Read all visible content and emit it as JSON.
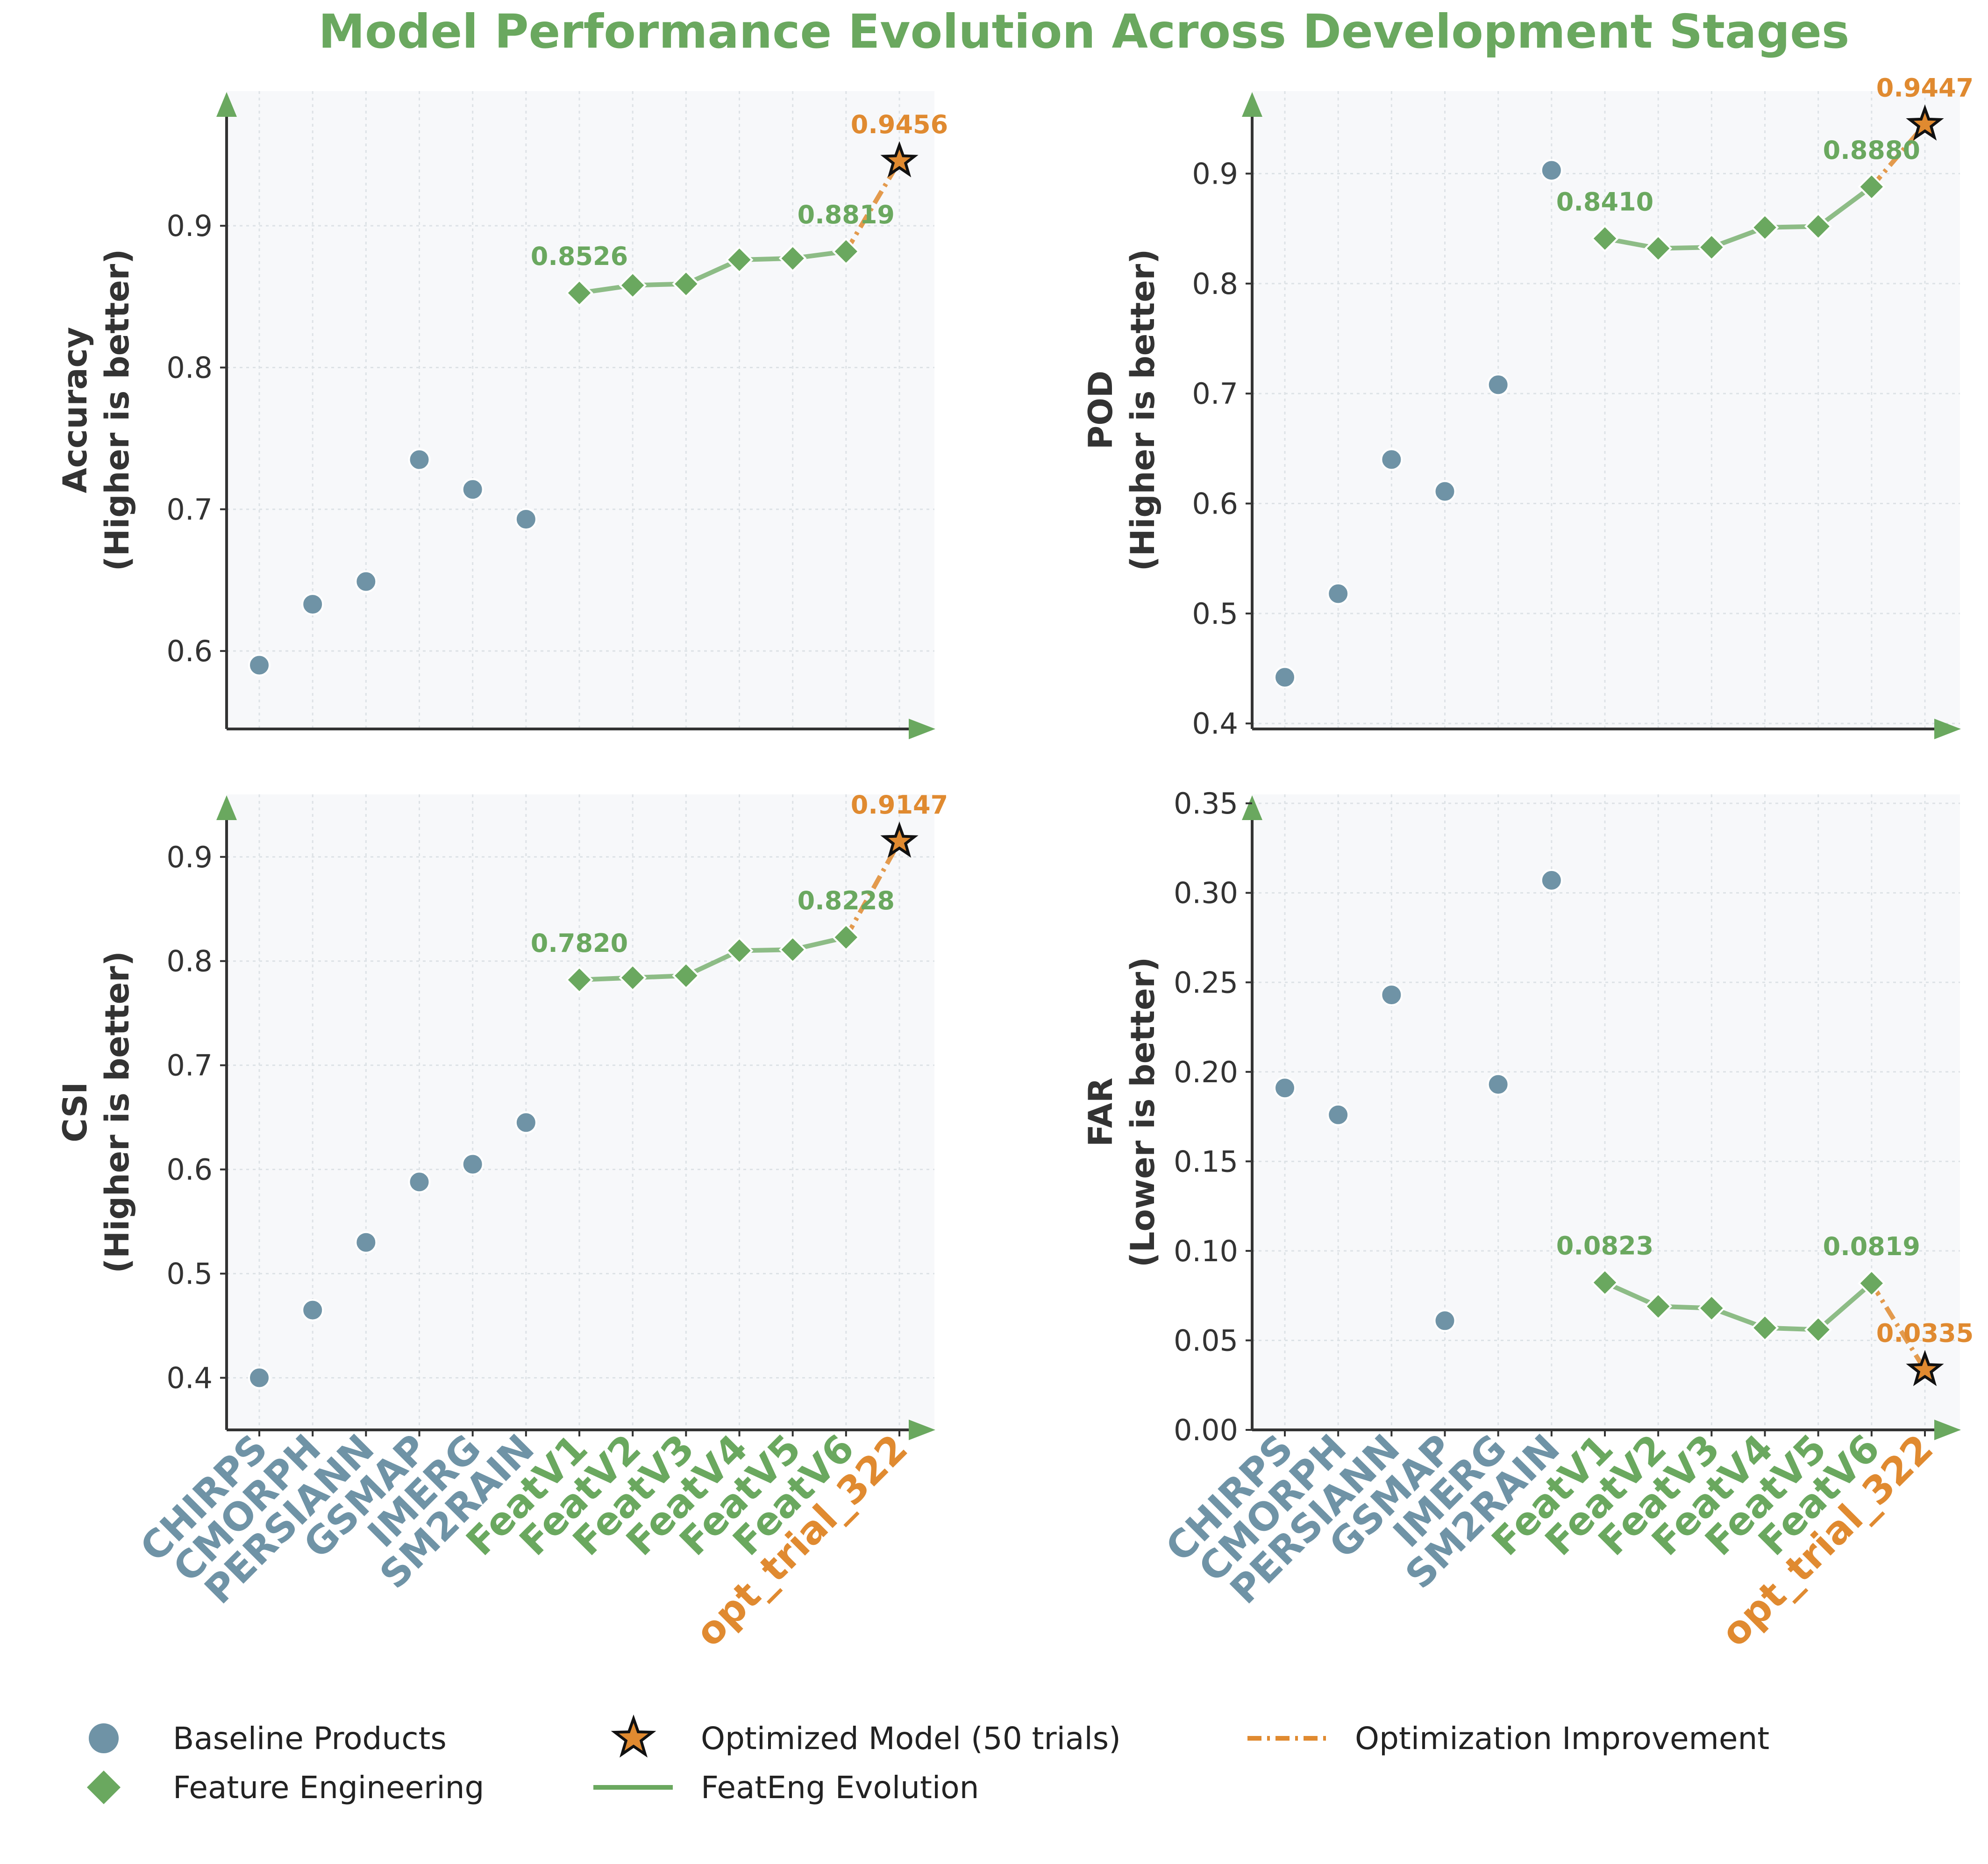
{
  "title": "Model Performance Evolution Across Development Stages",
  "colors": {
    "title": "#6aa85f",
    "baseline": "#6f93a6",
    "feature": "#6aa85f",
    "optimized": "#e08a30",
    "axes": "#333333",
    "panel_bg": "#f7f8fa",
    "grid": "#dde2e6"
  },
  "legend": {
    "baseline": "Baseline Products",
    "feature": "Feature Engineering",
    "optimized": "Optimized Model (50 trials)",
    "evolution": "FeatEng Evolution",
    "improvement": "Optimization Improvement"
  },
  "chart_data": {
    "type": "scatter",
    "categories": [
      "CHIRPS",
      "CMORPH",
      "PERSIANN",
      "GSMAP",
      "IMERG",
      "SM2RAIN",
      "FeatV1",
      "FeatV2",
      "FeatV3",
      "FeatV4",
      "FeatV5",
      "FeatV6",
      "opt_trial_322"
    ],
    "groups": [
      "baseline",
      "baseline",
      "baseline",
      "baseline",
      "baseline",
      "baseline",
      "feature",
      "feature",
      "feature",
      "feature",
      "feature",
      "feature",
      "optimized"
    ],
    "panels": [
      {
        "ylabel_line1": "Accuracy",
        "ylabel_line2": "(Higher is better)",
        "ylim": [
          0.545,
          0.995
        ],
        "yticks": [
          0.6,
          0.7,
          0.8,
          0.9
        ],
        "ytick_labels": [
          "0.6",
          "0.7",
          "0.8",
          "0.9"
        ],
        "values": [
          0.59,
          0.633,
          0.649,
          0.735,
          0.714,
          0.693,
          0.8526,
          0.858,
          0.859,
          0.876,
          0.877,
          0.8819,
          0.9456
        ],
        "annotations": [
          {
            "index": 6,
            "text": "0.8526",
            "group": "feature"
          },
          {
            "index": 11,
            "text": "0.8819",
            "group": "feature"
          },
          {
            "index": 12,
            "text": "0.9456",
            "group": "optimized"
          }
        ]
      },
      {
        "ylabel_line1": "POD",
        "ylabel_line2": "(Higher is better)",
        "ylim": [
          0.395,
          0.975
        ],
        "yticks": [
          0.4,
          0.5,
          0.6,
          0.7,
          0.8,
          0.9
        ],
        "ytick_labels": [
          "0.4",
          "0.5",
          "0.6",
          "0.7",
          "0.8",
          "0.9"
        ],
        "values": [
          0.442,
          0.518,
          0.64,
          0.611,
          0.708,
          0.903,
          0.841,
          0.832,
          0.833,
          0.851,
          0.852,
          0.888,
          0.9447
        ],
        "annotations": [
          {
            "index": 6,
            "text": "0.8410",
            "group": "feature"
          },
          {
            "index": 11,
            "text": "0.8880",
            "group": "feature"
          },
          {
            "index": 12,
            "text": "0.9447",
            "group": "optimized"
          }
        ]
      },
      {
        "ylabel_line1": "CSI",
        "ylabel_line2": "(Higher is better)",
        "ylim": [
          0.35,
          0.96
        ],
        "yticks": [
          0.4,
          0.5,
          0.6,
          0.7,
          0.8,
          0.9
        ],
        "ytick_labels": [
          "0.4",
          "0.5",
          "0.6",
          "0.7",
          "0.8",
          "0.9"
        ],
        "values": [
          0.4,
          0.465,
          0.53,
          0.588,
          0.605,
          0.645,
          0.782,
          0.784,
          0.786,
          0.81,
          0.811,
          0.8228,
          0.9147
        ],
        "annotations": [
          {
            "index": 6,
            "text": "0.7820",
            "group": "feature"
          },
          {
            "index": 11,
            "text": "0.8228",
            "group": "feature"
          },
          {
            "index": 12,
            "text": "0.9147",
            "group": "optimized"
          }
        ]
      },
      {
        "ylabel_line1": "FAR",
        "ylabel_line2": "(Lower is better)",
        "ylim": [
          0.0,
          0.355
        ],
        "yticks": [
          0.0,
          0.05,
          0.1,
          0.15,
          0.2,
          0.25,
          0.3,
          0.35
        ],
        "ytick_labels": [
          "0.00",
          "0.05",
          "0.10",
          "0.15",
          "0.20",
          "0.25",
          "0.30",
          "0.35"
        ],
        "values": [
          0.191,
          0.176,
          0.243,
          0.061,
          0.193,
          0.307,
          0.0823,
          0.069,
          0.068,
          0.057,
          0.056,
          0.0819,
          0.0335
        ],
        "annotations": [
          {
            "index": 6,
            "text": "0.0823",
            "group": "feature"
          },
          {
            "index": 11,
            "text": "0.0819",
            "group": "feature"
          },
          {
            "index": 12,
            "text": "0.0335",
            "group": "optimized"
          }
        ]
      }
    ]
  }
}
